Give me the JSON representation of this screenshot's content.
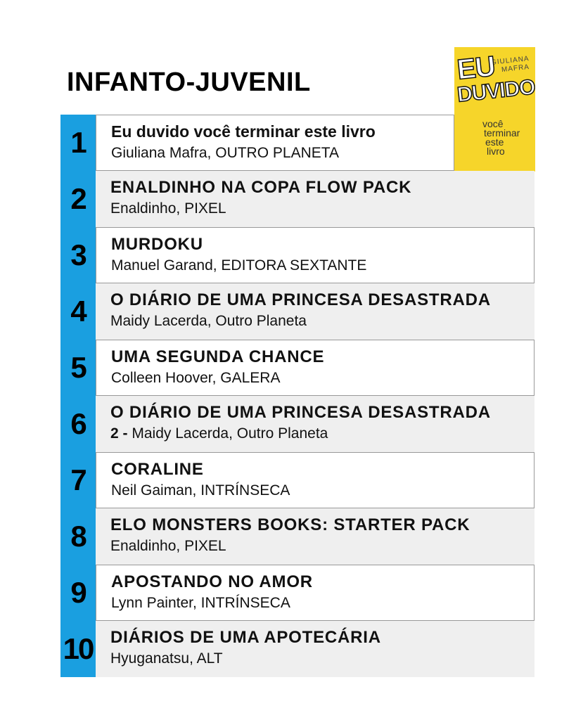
{
  "header": {
    "title": "INFANTO-JUVENIL"
  },
  "cover": {
    "author_lines": [
      "GIULIANA",
      "MAFRA"
    ],
    "title_lines": [
      "EU",
      "DUVIDO"
    ],
    "subtitle_lines": [
      "você",
      "terminar",
      "este",
      "livro"
    ]
  },
  "rows": [
    {
      "rank": 1,
      "title": "Eu duvido você terminar este livro",
      "detail": "Giuliana Mafra, OUTRO PLANETA"
    },
    {
      "rank": 2,
      "title": "ENALDINHO NA COPA FLOW PACK",
      "detail": "Enaldinho, PIXEL"
    },
    {
      "rank": 3,
      "title": "MURDOKU",
      "detail": "Manuel Garand, EDITORA SEXTANTE"
    },
    {
      "rank": 4,
      "title": "O DIÁRIO DE UMA PRINCESA DESASTRADA",
      "detail": "Maidy Lacerda, Outro Planeta"
    },
    {
      "rank": 5,
      "title": "UMA SEGUNDA CHANCE",
      "detail": "Colleen Hoover, GALERA"
    },
    {
      "rank": 6,
      "title": "O DIÁRIO DE UMA PRINCESA DESASTRADA",
      "prefix": "2 -",
      "detail": "Maidy Lacerda, Outro Planeta"
    },
    {
      "rank": 7,
      "title": "CORALINE",
      "detail": "Neil Gaiman, INTRÍNSECA"
    },
    {
      "rank": 8,
      "title": "ELO MONSTERS BOOKS: STARTER PACK",
      "detail": "Enaldinho, PIXEL"
    },
    {
      "rank": 9,
      "title": "APOSTANDO NO AMOR",
      "detail": "Lynn Painter, INTRÍNSECA"
    },
    {
      "rank": 10,
      "title": "DIÁRIOS DE UMA APOTECÁRIA",
      "detail": "Hyuganatsu, ALT"
    }
  ]
}
